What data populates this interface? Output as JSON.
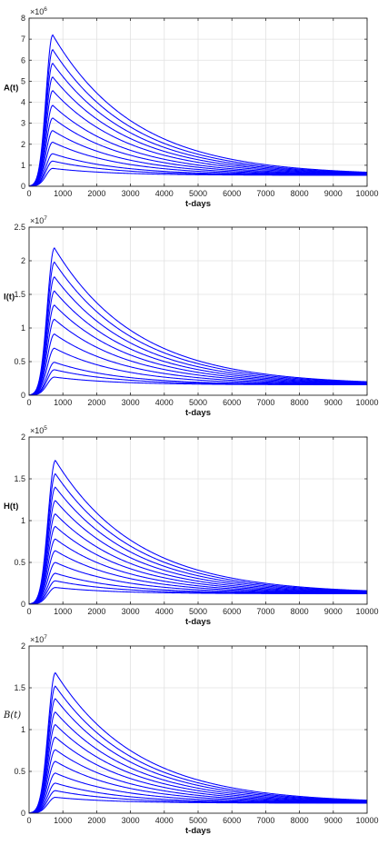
{
  "chart_data": [
    {
      "type": "line",
      "ylabel": "A(t)",
      "xlabel": "t-days",
      "multiplier": "×10",
      "multiplier_exp": "6",
      "xlim": [
        0,
        10000
      ],
      "ylim": [
        0,
        8
      ],
      "xticks": [
        0,
        1000,
        2000,
        3000,
        4000,
        5000,
        6000,
        7000,
        8000,
        9000,
        10000
      ],
      "yticks": [
        0,
        1,
        2,
        3,
        4,
        5,
        6,
        7,
        8
      ],
      "grid": true,
      "line_color": "#0000ff",
      "curve_family": {
        "count": 12,
        "peak_time": 700,
        "peak_max": 7.2,
        "peak_min": 0.85,
        "rise_half": 300,
        "steady_state": 0.52
      },
      "series": [
        {
          "peak": 7.2
        },
        {
          "peak": 6.5
        },
        {
          "peak": 5.85
        },
        {
          "peak": 5.2
        },
        {
          "peak": 4.55
        },
        {
          "peak": 3.85
        },
        {
          "peak": 3.25
        },
        {
          "peak": 2.65
        },
        {
          "peak": 2.1
        },
        {
          "peak": 1.55
        },
        {
          "peak": 1.2
        },
        {
          "peak": 0.85
        }
      ]
    },
    {
      "type": "line",
      "ylabel": "I(t)",
      "xlabel": "t-days",
      "multiplier": "×10",
      "multiplier_exp": "7",
      "xlim": [
        0,
        10000
      ],
      "ylim": [
        0,
        2.5
      ],
      "xticks": [
        0,
        1000,
        2000,
        3000,
        4000,
        5000,
        6000,
        7000,
        8000,
        9000,
        10000
      ],
      "yticks": [
        0,
        0.5,
        1,
        1.5,
        2,
        2.5
      ],
      "grid": true,
      "line_color": "#0000ff",
      "curve_family": {
        "count": 11,
        "peak_time": 750,
        "peak_max": 2.19,
        "peak_min": 0.27,
        "rise_half": 320,
        "steady_state": 0.155
      },
      "series": [
        {
          "peak": 2.19
        },
        {
          "peak": 1.98
        },
        {
          "peak": 1.76
        },
        {
          "peak": 1.55
        },
        {
          "peak": 1.34
        },
        {
          "peak": 1.13
        },
        {
          "peak": 0.91
        },
        {
          "peak": 0.7
        },
        {
          "peak": 0.49
        },
        {
          "peak": 0.38
        },
        {
          "peak": 0.27
        }
      ]
    },
    {
      "type": "line",
      "ylabel": "H(t)",
      "xlabel": "t-days",
      "multiplier": "×10",
      "multiplier_exp": "5",
      "xlim": [
        0,
        10000
      ],
      "ylim": [
        0,
        2
      ],
      "xticks": [
        0,
        1000,
        2000,
        3000,
        4000,
        5000,
        6000,
        7000,
        8000,
        9000,
        10000
      ],
      "yticks": [
        0,
        0.5,
        1,
        1.5,
        2
      ],
      "grid": true,
      "line_color": "#0000ff",
      "curve_family": {
        "count": 12,
        "peak_time": 780,
        "peak_max": 1.72,
        "peak_min": 0.2,
        "rise_half": 330,
        "steady_state": 0.125
      },
      "series": [
        {
          "peak": 1.72
        },
        {
          "peak": 1.56
        },
        {
          "peak": 1.4
        },
        {
          "peak": 1.24
        },
        {
          "peak": 1.08
        },
        {
          "peak": 0.93
        },
        {
          "peak": 0.78
        },
        {
          "peak": 0.64
        },
        {
          "peak": 0.5
        },
        {
          "peak": 0.37
        },
        {
          "peak": 0.28
        },
        {
          "peak": 0.2
        }
      ]
    },
    {
      "type": "line",
      "ylabel": "B(t)",
      "ylabel_style": "script",
      "xlabel": "t-days",
      "multiplier": "×10",
      "multiplier_exp": "7",
      "xlim": [
        0,
        10000
      ],
      "ylim": [
        0,
        2
      ],
      "xticks": [
        0,
        1000,
        2000,
        3000,
        4000,
        5000,
        6000,
        7000,
        8000,
        9000,
        10000
      ],
      "yticks": [
        0,
        0.5,
        1,
        1.5,
        2
      ],
      "grid": true,
      "line_color": "#0000ff",
      "curve_family": {
        "count": 12,
        "peak_time": 780,
        "peak_max": 1.68,
        "peak_min": 0.19,
        "rise_half": 330,
        "steady_state": 0.12
      },
      "series": [
        {
          "peak": 1.68
        },
        {
          "peak": 1.52
        },
        {
          "peak": 1.37
        },
        {
          "peak": 1.21
        },
        {
          "peak": 1.06
        },
        {
          "peak": 0.91
        },
        {
          "peak": 0.76
        },
        {
          "peak": 0.62
        },
        {
          "peak": 0.48
        },
        {
          "peak": 0.36
        },
        {
          "peak": 0.27
        },
        {
          "peak": 0.19
        }
      ]
    }
  ]
}
